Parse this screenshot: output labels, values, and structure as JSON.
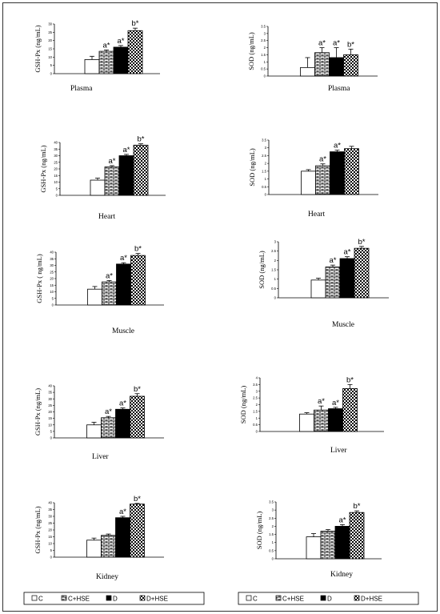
{
  "chart_data": [
    {
      "type": "bar",
      "tissue": "Plasma",
      "ylabel": "GSH-Px (ng/mL)",
      "ylim": [
        0,
        30
      ],
      "yticks": [
        0,
        5,
        10,
        15,
        20,
        25,
        30
      ],
      "series": [
        {
          "name": "C",
          "value": 8.5,
          "error": 2.0,
          "sig": ""
        },
        {
          "name": "C+HSE",
          "value": 13.5,
          "error": 0.8,
          "sig": "a*"
        },
        {
          "name": "D",
          "value": 16.0,
          "error": 1.0,
          "sig": "a*"
        },
        {
          "name": "D+HSE",
          "value": 26.0,
          "error": 1.5,
          "sig": "b*"
        }
      ]
    },
    {
      "type": "bar",
      "tissue": "Plasma",
      "ylabel": "SOD (ng/mL)",
      "ylim": [
        0,
        3.5
      ],
      "yticks": [
        0,
        0.5,
        1,
        1.5,
        2,
        2.5,
        3,
        3.5
      ],
      "series": [
        {
          "name": "C",
          "value": 0.6,
          "error": 0.7,
          "sig": ""
        },
        {
          "name": "C+HSE",
          "value": 1.65,
          "error": 0.35,
          "sig": "a*"
        },
        {
          "name": "D",
          "value": 1.3,
          "error": 0.7,
          "sig": "a*"
        },
        {
          "name": "D+HSE",
          "value": 1.5,
          "error": 0.4,
          "sig": "b*"
        }
      ]
    },
    {
      "type": "bar",
      "tissue": "Heart",
      "ylabel": "GSH-Px (ng/mL)",
      "ylim": [
        0,
        40
      ],
      "yticks": [
        0,
        5,
        10,
        15,
        20,
        25,
        30,
        35,
        40
      ],
      "series": [
        {
          "name": "C",
          "value": 11.5,
          "error": 1.5,
          "sig": ""
        },
        {
          "name": "C+HSE",
          "value": 21.5,
          "error": 1.0,
          "sig": "a*"
        },
        {
          "name": "D",
          "value": 30.0,
          "error": 1.0,
          "sig": "a*"
        },
        {
          "name": "D+HSE",
          "value": 38.0,
          "error": 1.0,
          "sig": "b*"
        }
      ]
    },
    {
      "type": "bar",
      "tissue": "Heart",
      "ylabel": "SOD (ng/mL)",
      "ylim": [
        0,
        3.5
      ],
      "yticks": [
        0,
        0.5,
        1,
        1.5,
        2,
        2.5,
        3,
        3.5
      ],
      "series": [
        {
          "name": "C",
          "value": 1.5,
          "error": 0.1,
          "sig": ""
        },
        {
          "name": "C+HSE",
          "value": 1.85,
          "error": 0.12,
          "sig": "a*"
        },
        {
          "name": "D",
          "value": 2.75,
          "error": 0.1,
          "sig": "a*"
        },
        {
          "name": "D+HSE",
          "value": 2.95,
          "error": 0.15,
          "sig": ""
        }
      ]
    },
    {
      "type": "bar",
      "tissue": "Muscle",
      "ylabel": "GSH-Px ( ng/mL)",
      "ylim": [
        0,
        40
      ],
      "yticks": [
        0,
        5,
        10,
        15,
        20,
        25,
        30,
        35,
        40
      ],
      "series": [
        {
          "name": "C",
          "value": 12.0,
          "error": 2.0,
          "sig": ""
        },
        {
          "name": "C+HSE",
          "value": 17.5,
          "error": 1.0,
          "sig": "a*"
        },
        {
          "name": "D",
          "value": 31.0,
          "error": 1.0,
          "sig": "a*"
        },
        {
          "name": "D+HSE",
          "value": 37.5,
          "error": 1.5,
          "sig": "b*"
        }
      ]
    },
    {
      "type": "bar",
      "tissue": "Muscle",
      "ylabel": "SOD (ng/mL)",
      "ylim": [
        0,
        3
      ],
      "yticks": [
        0,
        0.5,
        1,
        1.5,
        2,
        2.5,
        3
      ],
      "series": [
        {
          "name": "C",
          "value": 0.95,
          "error": 0.1,
          "sig": ""
        },
        {
          "name": "C+HSE",
          "value": 1.65,
          "error": 0.1,
          "sig": "a*"
        },
        {
          "name": "D",
          "value": 2.1,
          "error": 0.1,
          "sig": "a*"
        },
        {
          "name": "D+HSE",
          "value": 2.65,
          "error": 0.1,
          "sig": "b*"
        }
      ]
    },
    {
      "type": "bar",
      "tissue": "Liver",
      "ylabel": "GSH-Px (ng/mL)",
      "ylim": [
        0,
        40
      ],
      "yticks": [
        0,
        5,
        10,
        15,
        20,
        25,
        30,
        35,
        40
      ],
      "series": [
        {
          "name": "C",
          "value": 10.0,
          "error": 2.0,
          "sig": ""
        },
        {
          "name": "C+HSE",
          "value": 15.5,
          "error": 1.0,
          "sig": "a*"
        },
        {
          "name": "D",
          "value": 22.0,
          "error": 1.0,
          "sig": "a*"
        },
        {
          "name": "D+HSE",
          "value": 32.0,
          "error": 2.0,
          "sig": "b*"
        }
      ]
    },
    {
      "type": "bar",
      "tissue": "Liver",
      "ylabel": "SOD (ng/mL)",
      "ylim": [
        0,
        4
      ],
      "yticks": [
        0,
        0.5,
        1,
        1.5,
        2,
        2.5,
        3,
        3.5,
        4
      ],
      "series": [
        {
          "name": "C",
          "value": 1.3,
          "error": 0.1,
          "sig": ""
        },
        {
          "name": "C+HSE",
          "value": 1.6,
          "error": 0.3,
          "sig": "a*"
        },
        {
          "name": "D",
          "value": 1.7,
          "error": 0.1,
          "sig": "a*"
        },
        {
          "name": "D+HSE",
          "value": 3.2,
          "error": 0.3,
          "sig": "b*"
        }
      ]
    },
    {
      "type": "bar",
      "tissue": "Kidney",
      "ylabel": "GSH-Px (ng/mL)",
      "ylim": [
        0,
        40
      ],
      "yticks": [
        0,
        5,
        10,
        15,
        20,
        25,
        30,
        35,
        40
      ],
      "series": [
        {
          "name": "C",
          "value": 12.5,
          "error": 1.5,
          "sig": ""
        },
        {
          "name": "C+HSE",
          "value": 16.0,
          "error": 1.0,
          "sig": ""
        },
        {
          "name": "D",
          "value": 29.0,
          "error": 1.0,
          "sig": "a*"
        },
        {
          "name": "D+HSE",
          "value": 39.0,
          "error": 0.5,
          "sig": "b*"
        }
      ]
    },
    {
      "type": "bar",
      "tissue": "Kidney",
      "ylabel": "SOD (ng/mL)",
      "ylim": [
        0,
        3.5
      ],
      "yticks": [
        0,
        0.5,
        1,
        1.5,
        2,
        2.5,
        3,
        3.5
      ],
      "series": [
        {
          "name": "C",
          "value": 1.35,
          "error": 0.2,
          "sig": ""
        },
        {
          "name": "C+HSE",
          "value": 1.7,
          "error": 0.1,
          "sig": ""
        },
        {
          "name": "D",
          "value": 2.0,
          "error": 0.1,
          "sig": "a*"
        },
        {
          "name": "D+HSE",
          "value": 2.85,
          "error": 0.1,
          "sig": "b*"
        }
      ]
    }
  ],
  "legend": [
    {
      "name": "C",
      "pattern": "white"
    },
    {
      "name": "C+HSE",
      "pattern": "brick"
    },
    {
      "name": "D",
      "pattern": "black"
    },
    {
      "name": "D+HSE",
      "pattern": "check"
    }
  ]
}
